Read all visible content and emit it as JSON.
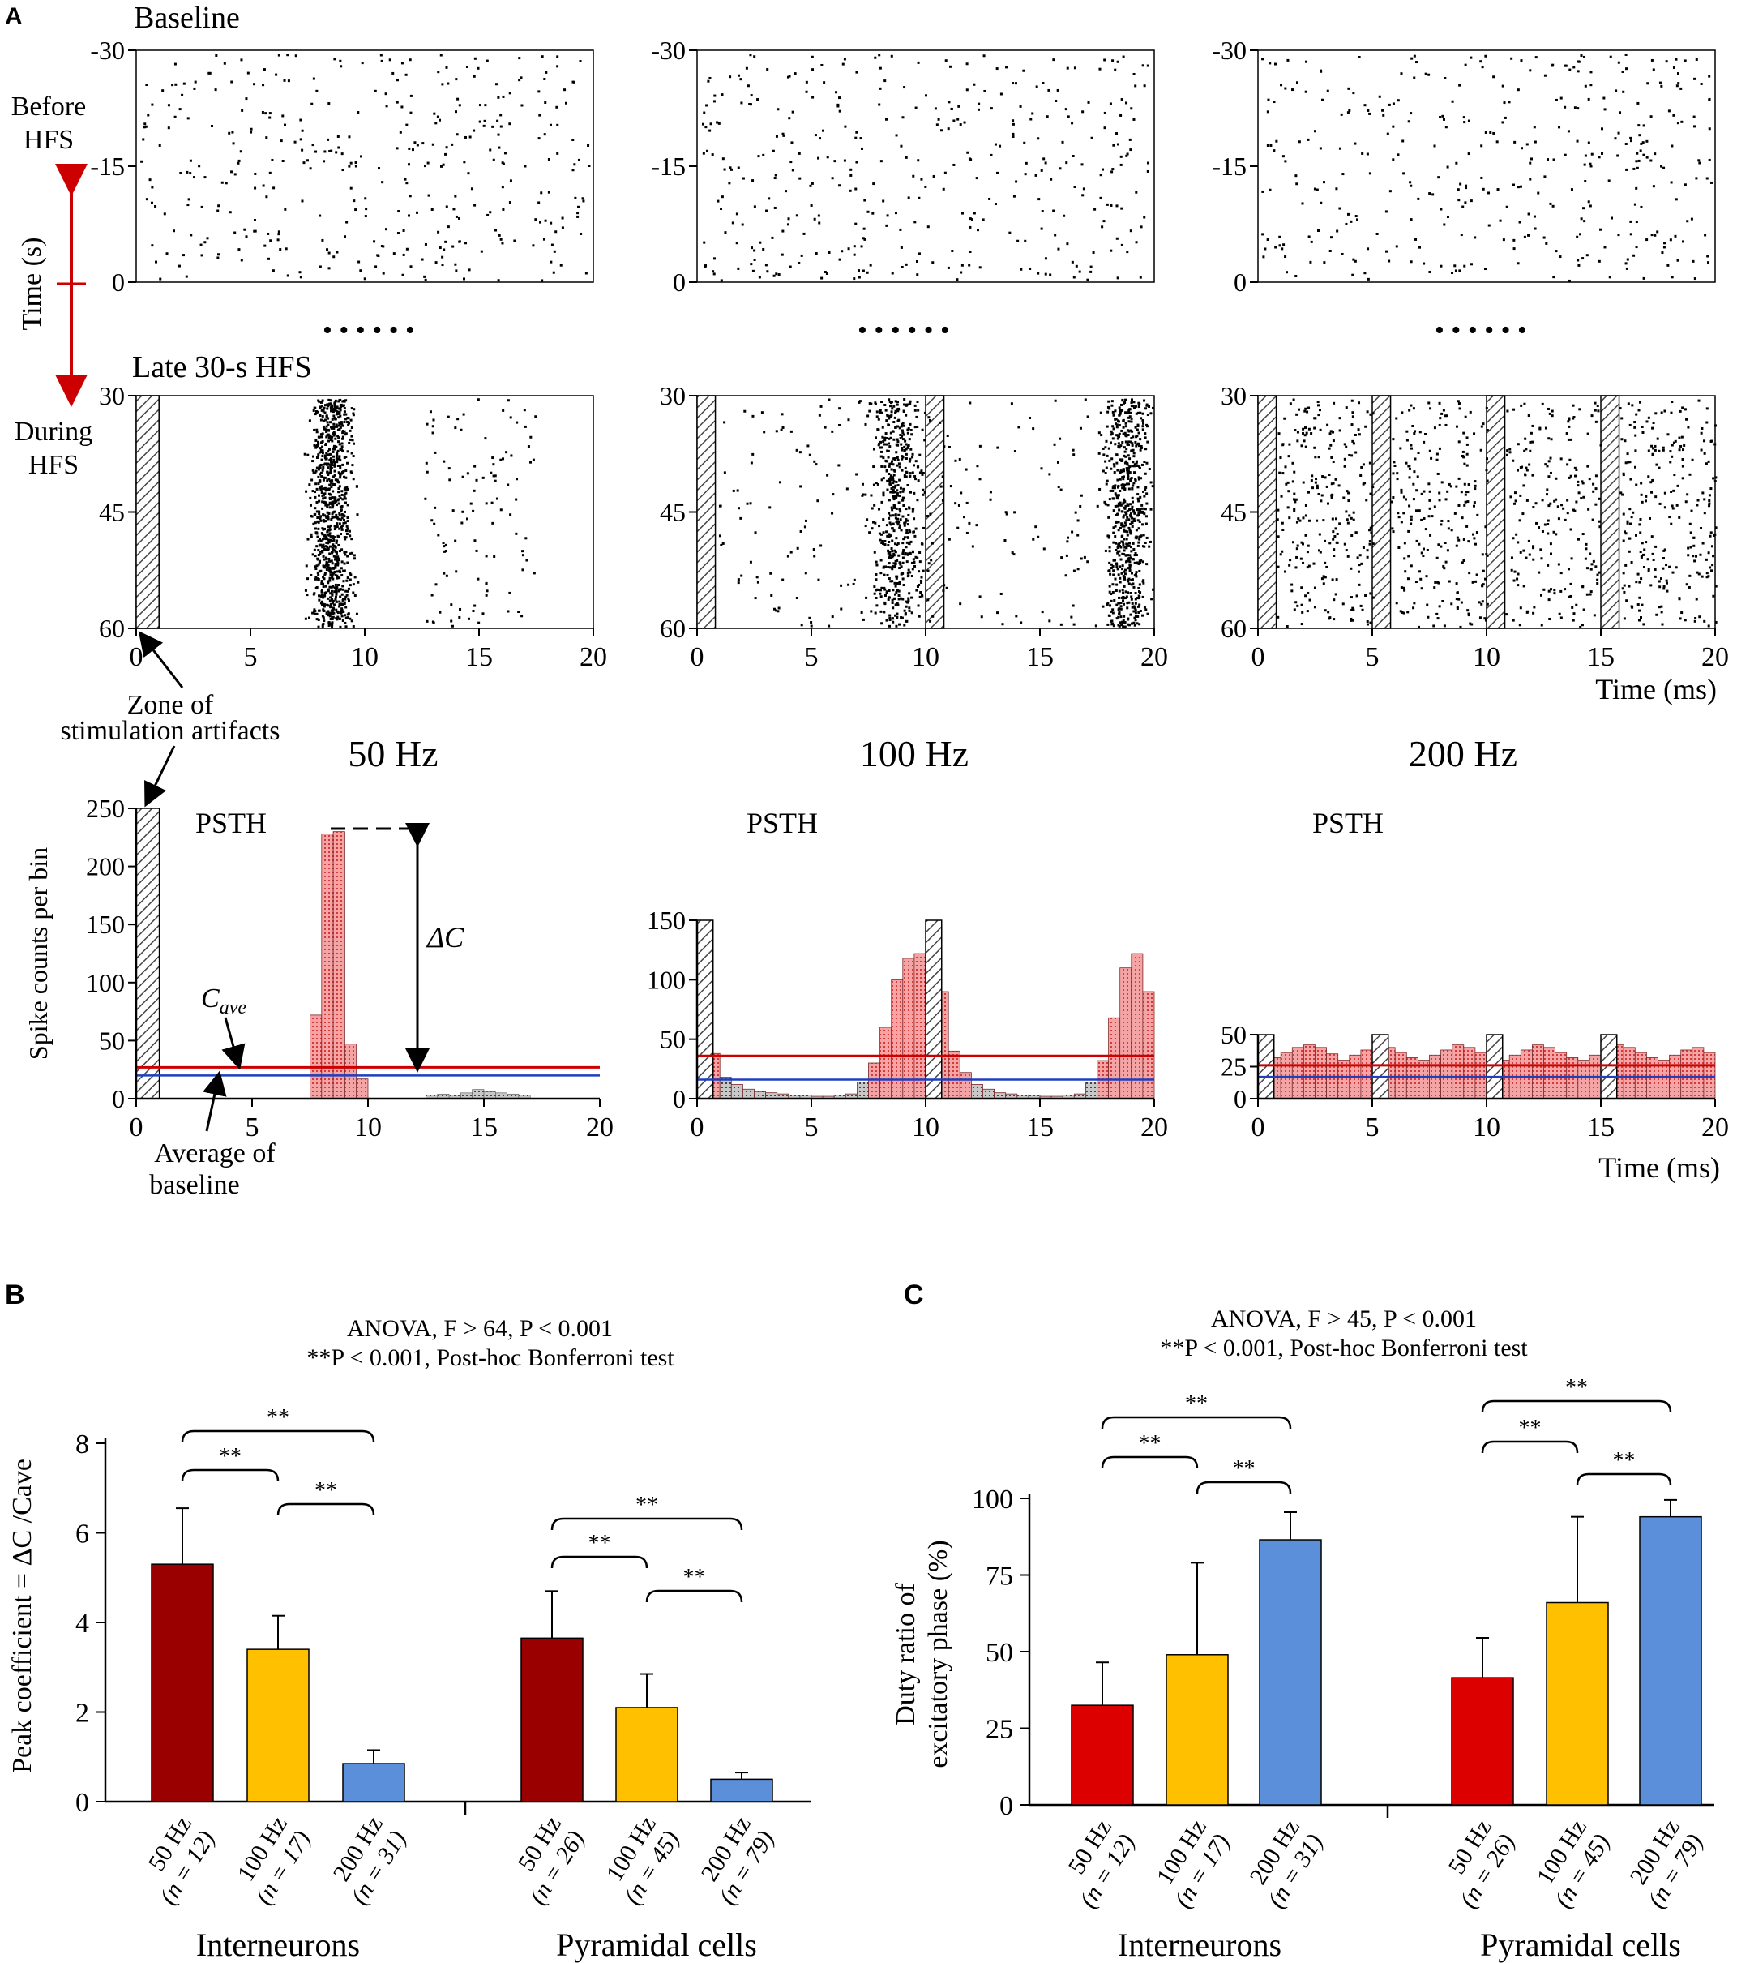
{
  "colors": {
    "axis": "#000000",
    "cave_line": "#cc0000",
    "baseline_line": "#1f3fbf",
    "psth_excited": "#f08080",
    "psth_other": "#9a9a9a",
    "arrow_red": "#cc0000",
    "bar_50": "#9b0000",
    "bar_50_c": "#dd0000",
    "bar_100": "#ffc000",
    "bar_200": "#5b8fd9"
  },
  "panel_a": {
    "label": "A",
    "row1_title": "Baseline",
    "row2_title": "Late 30-s HFS",
    "before_label_1": "Before",
    "before_label_2": "HFS",
    "during_label_1": "During",
    "during_label_2": "HFS",
    "time_axis_label": "Time (s)",
    "time_ms_label": "Time (ms)",
    "time_ms_label_psth": "Time (ms)",
    "dots": "• • • • • •",
    "freqs": [
      "50 Hz",
      "100 Hz",
      "200 Hz"
    ],
    "artifact_label_1": "Zone of",
    "artifact_label_2": "stimulation artifacts",
    "psth_title": "PSTH",
    "psth_ylabel": "Spike counts per bin",
    "cave_label": "C",
    "cave_sub": "ave",
    "delta_c_label": "ΔC",
    "baseline_avg_label_1": "Average of",
    "baseline_avg_label_2": "baseline",
    "baseline_yticks": [
      "-30",
      "-15",
      "0"
    ],
    "hfs_yticks": [
      "30",
      "45",
      "60"
    ],
    "raster_xticks": [
      "0",
      "5",
      "10",
      "15",
      "20"
    ],
    "psth1_yticks": [
      "0",
      "50",
      "100",
      "150",
      "200",
      "250"
    ],
    "psth2_yticks": [
      "0",
      "50",
      "100",
      "150"
    ],
    "psth3_yticks": [
      "0",
      "25",
      "50"
    ],
    "psth_xticks": [
      "0",
      "5",
      "10",
      "15",
      "20"
    ]
  },
  "panel_b": {
    "label": "B",
    "stat_line1": "ANOVA, F > 64, P < 0.001",
    "stat_line2": "**P < 0.001, Post-hoc Bonferroni test",
    "ylabel": "Peak coefficient  = ΔC /Cave",
    "yticks": [
      "0",
      "2",
      "4",
      "6",
      "8"
    ],
    "sig": "**",
    "groups": [
      "Interneurons",
      "Pyramidal cells"
    ],
    "xlabels": [
      [
        "50 Hz",
        "(n = 12)"
      ],
      [
        "100 Hz",
        "(n = 17)"
      ],
      [
        "200 Hz",
        "(n = 31)"
      ],
      [
        "50 Hz",
        "(n = 26)"
      ],
      [
        "100 Hz",
        "(n = 45)"
      ],
      [
        "200 Hz",
        "(n = 79)"
      ]
    ]
  },
  "panel_c": {
    "label": "C",
    "stat_line1": "ANOVA, F > 45, P < 0.001",
    "stat_line2": "**P < 0.001, Post-hoc Bonferroni test",
    "ylabel_1": "Duty ratio of",
    "ylabel_2": "excitatory phase (%)",
    "yticks": [
      "0",
      "25",
      "50",
      "75",
      "100"
    ],
    "sig": "**",
    "groups": [
      "Interneurons",
      "Pyramidal cells"
    ],
    "xlabels": [
      [
        "50 Hz",
        "(n = 12)"
      ],
      [
        "100 Hz",
        "(n = 17)"
      ],
      [
        "200 Hz",
        "(n = 31)"
      ],
      [
        "50 Hz",
        "(n = 26)"
      ],
      [
        "100 Hz",
        "(n = 45)"
      ],
      [
        "200 Hz",
        "(n = 79)"
      ]
    ]
  },
  "chart_data": [
    {
      "type": "bar",
      "id": "psth_50hz",
      "title": "PSTH",
      "xlabel": "",
      "ylabel": "Spike counts per bin",
      "bin_width_ms": 0.5,
      "x_start_ms": 7.5,
      "values": [
        72,
        228,
        230,
        47,
        17
      ],
      "artifact_zones_ms": [
        [
          0,
          1
        ]
      ],
      "cave": 27,
      "baseline_average": 20,
      "peak": 230,
      "xlim": [
        0,
        20
      ],
      "ylim": [
        0,
        250
      ]
    },
    {
      "type": "bar",
      "id": "psth_100hz",
      "title": "PSTH",
      "bin_width_ms": 0.5,
      "x_start_ms": 0,
      "values": [
        42,
        38,
        18,
        12,
        8,
        6,
        5,
        4,
        3,
        3,
        2,
        2,
        3,
        4,
        14,
        30,
        60,
        100,
        118,
        122,
        115,
        90,
        40,
        22,
        12,
        8,
        5,
        4,
        3,
        3,
        2,
        2,
        3,
        4,
        14,
        32,
        68,
        110,
        122,
        90
      ],
      "artifact_zones_ms": [
        [
          0,
          0.7
        ],
        [
          10,
          10.7
        ]
      ],
      "cave": 36,
      "baseline_average": 16,
      "xlim": [
        0,
        20
      ],
      "ylim": [
        0,
        150
      ]
    },
    {
      "type": "bar",
      "id": "psth_200hz",
      "title": "PSTH",
      "bin_width_ms": 0.5,
      "x_start_ms": 0,
      "values": [
        30,
        32,
        36,
        40,
        42,
        40,
        35,
        30,
        34,
        38,
        42,
        40,
        36,
        32,
        30,
        34,
        38,
        42,
        40,
        36,
        32,
        30,
        34,
        38,
        42,
        40,
        36,
        32,
        30,
        34,
        38,
        42,
        40,
        36,
        32,
        30,
        34,
        38,
        40,
        36
      ],
      "artifact_zones_ms": [
        [
          0,
          0.7
        ],
        [
          5,
          5.7
        ],
        [
          10,
          10.7
        ],
        [
          15,
          15.7
        ]
      ],
      "cave": 26,
      "baseline_average": 17,
      "xlim": [
        0,
        20
      ],
      "ylim": [
        0,
        50
      ]
    },
    {
      "type": "bar",
      "id": "peak_coefficient",
      "title": "ANOVA, F > 64, P < 0.001",
      "ylabel": "Peak coefficient = ΔC /Cave",
      "categories": [
        "50 Hz (n = 12)",
        "100 Hz (n = 17)",
        "200 Hz (n = 31)",
        "50 Hz (n = 26)",
        "100 Hz (n = 45)",
        "200 Hz (n = 79)"
      ],
      "groups": [
        "Interneurons",
        "Pyramidal cells"
      ],
      "values": [
        5.3,
        3.4,
        0.85,
        3.65,
        2.1,
        0.5
      ],
      "errors": [
        1.25,
        0.75,
        0.3,
        1.05,
        0.75,
        0.15
      ],
      "ylim": [
        0,
        8
      ]
    },
    {
      "type": "bar",
      "id": "duty_ratio",
      "title": "ANOVA, F > 45, P < 0.001",
      "ylabel": "Duty ratio of excitatory phase (%)",
      "categories": [
        "50 Hz (n = 12)",
        "100 Hz (n = 17)",
        "200 Hz (n = 31)",
        "50 Hz (n = 26)",
        "100 Hz (n = 45)",
        "200 Hz (n = 79)"
      ],
      "groups": [
        "Interneurons",
        "Pyramidal cells"
      ],
      "values": [
        32.5,
        49,
        86.5,
        41.5,
        66,
        94
      ],
      "errors": [
        14,
        30,
        9,
        13,
        28,
        5.5
      ],
      "ylim": [
        0,
        100
      ]
    }
  ]
}
